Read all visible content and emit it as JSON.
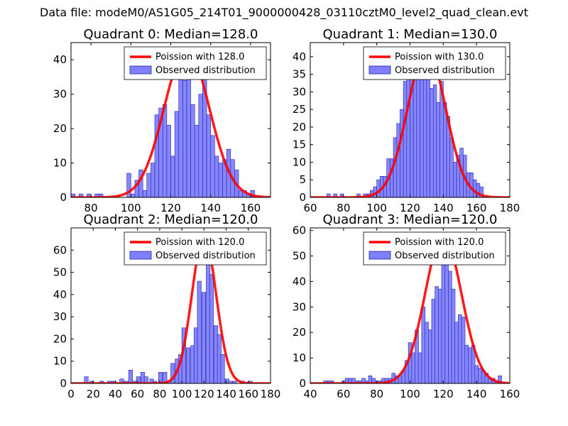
{
  "figure": {
    "suptitle": "Data file: modeM0/AS1G05_214T01_9000000428_03110cztM0_level2_quad_clean.evt",
    "colors": {
      "hist": "#7f7fff",
      "hist_edge": "#2222aa",
      "curve": "#ff0000"
    }
  },
  "chart_data": [
    {
      "type": "bar",
      "title": "Quadrant 0: Median=128.0",
      "legend": [
        "Poission with 128.0",
        "Observed distribution"
      ],
      "legend_loc": "upper-right",
      "xlim": [
        70,
        170
      ],
      "xticks": [
        80,
        100,
        120,
        140,
        160
      ],
      "ylim": [
        0,
        45
      ],
      "yticks": [
        0,
        10,
        20,
        30,
        40
      ],
      "bin_width": 2,
      "bin_starts": [
        70,
        74,
        78,
        82,
        84,
        98,
        100,
        102,
        104,
        106,
        108,
        110,
        112,
        114,
        116,
        118,
        120,
        122,
        124,
        126,
        128,
        130,
        132,
        134,
        136,
        138,
        140,
        142,
        144,
        146,
        148,
        150,
        152,
        154,
        156,
        158,
        160
      ],
      "counts": [
        1,
        1,
        1,
        1,
        1,
        7,
        1,
        5,
        8,
        2,
        7,
        10,
        24,
        26,
        27,
        21,
        12,
        25,
        39,
        34,
        37,
        27,
        21,
        30,
        37,
        24,
        18,
        12,
        10,
        11,
        14,
        11,
        8,
        2,
        2,
        1,
        2
      ],
      "poisson": {
        "mean": 128,
        "peak": 43
      }
    },
    {
      "type": "bar",
      "title": "Quadrant 1: Median=130.0",
      "legend": [
        "Poission with 130.0",
        "Observed distribution"
      ],
      "legend_loc": "upper-right",
      "xlim": [
        60,
        180
      ],
      "xticks": [
        60,
        80,
        100,
        120,
        140,
        160,
        180
      ],
      "ylim": [
        0,
        44
      ],
      "yticks": [
        0,
        5,
        10,
        15,
        20,
        25,
        30,
        35,
        40
      ],
      "bin_width": 2,
      "bin_starts": [
        70,
        74,
        78,
        88,
        92,
        94,
        96,
        98,
        100,
        102,
        104,
        106,
        108,
        110,
        112,
        114,
        116,
        118,
        120,
        122,
        124,
        126,
        128,
        130,
        132,
        134,
        136,
        138,
        140,
        142,
        144,
        146,
        148,
        150,
        152,
        154,
        156,
        158,
        160,
        162
      ],
      "counts": [
        1,
        1,
        1,
        1,
        1,
        1,
        2,
        3,
        5,
        6,
        6,
        11,
        11,
        17,
        21,
        25,
        33,
        35,
        35,
        42,
        36,
        40,
        36,
        34,
        31,
        32,
        27,
        33,
        27,
        23,
        17,
        10,
        12,
        14,
        12,
        7,
        7,
        5,
        4,
        3
      ],
      "poisson": {
        "mean": 130,
        "peak": 42
      }
    },
    {
      "type": "bar",
      "title": "Quadrant 2: Median=120.0",
      "legend": [
        "Poission with 120.0",
        "Observed distribution"
      ],
      "legend_loc": "upper-right",
      "xlim": [
        0,
        180
      ],
      "xticks": [
        0,
        20,
        40,
        60,
        80,
        100,
        120,
        140,
        160,
        180
      ],
      "ylim": [
        0,
        70
      ],
      "yticks": [
        0,
        10,
        20,
        30,
        40,
        50,
        60
      ],
      "bin_width": 3.5,
      "bin_starts": [
        12,
        17,
        26,
        33,
        37,
        44,
        48,
        52,
        55,
        59,
        63,
        66,
        71,
        74,
        79,
        83,
        87,
        90,
        94,
        97,
        100,
        104,
        108,
        111,
        114,
        118,
        122,
        125,
        129,
        132,
        135,
        139,
        142,
        146,
        153,
        160
      ],
      "counts": [
        3,
        1,
        1,
        1,
        1,
        2,
        1,
        6,
        1,
        3,
        5,
        3,
        2,
        1,
        5,
        5,
        1,
        9,
        11,
        13,
        25,
        16,
        17,
        25,
        46,
        41,
        57,
        49,
        26,
        22,
        13,
        2,
        1,
        1,
        1,
        1
      ],
      "poisson": {
        "mean": 120,
        "peak": 66
      }
    },
    {
      "type": "bar",
      "title": "Quadrant 3: Median=120.0",
      "legend": [
        "Poission with 120.0",
        "Observed distribution"
      ],
      "legend_loc": "upper-right",
      "xlim": [
        40,
        160
      ],
      "xticks": [
        40,
        60,
        80,
        100,
        120,
        140,
        160
      ],
      "ylim": [
        0,
        61
      ],
      "yticks": [
        0,
        10,
        20,
        30,
        40,
        50,
        60
      ],
      "bin_width": 2.1,
      "bin_starts": [
        48,
        50,
        52,
        59,
        61,
        63,
        65,
        67,
        69,
        71,
        73,
        75,
        77,
        79,
        81,
        83,
        85,
        87,
        89,
        91,
        93,
        95,
        97,
        99,
        101,
        103,
        105,
        107,
        109,
        111,
        113,
        115,
        117,
        119,
        121,
        123,
        125,
        127,
        129,
        131,
        133,
        135,
        137,
        139,
        141,
        143,
        145,
        147,
        149,
        151,
        153
      ],
      "counts": [
        1,
        1,
        1,
        1,
        2,
        2,
        2,
        1,
        1,
        2,
        1,
        3,
        2,
        1,
        1,
        2,
        2,
        2,
        4,
        3,
        3,
        5,
        9,
        16,
        12,
        21,
        12,
        30,
        24,
        21,
        33,
        38,
        37,
        58,
        51,
        44,
        37,
        24,
        27,
        26,
        15,
        14,
        15,
        7,
        6,
        5,
        4,
        2,
        2,
        1,
        3
      ],
      "poisson": {
        "mean": 120,
        "peak": 58
      }
    }
  ]
}
